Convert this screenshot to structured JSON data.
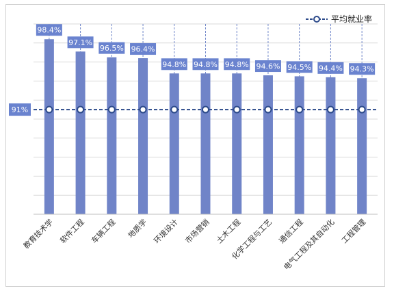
{
  "chart_data": {
    "type": "bar",
    "categories": [
      "教育技术学",
      "软件工程",
      "车辆工程",
      "地质学",
      "环境设计",
      "市场营销",
      "土木工程",
      "化学工程与工艺",
      "通信工程",
      "电气工程及其自动化",
      "工程管理"
    ],
    "values": [
      98.4,
      97.1,
      96.5,
      96.4,
      94.8,
      94.8,
      94.8,
      94.6,
      94.5,
      94.4,
      94.3
    ],
    "value_labels": [
      "98.4%",
      "97.1%",
      "96.5%",
      "96.4%",
      "94.8%",
      "94.8%",
      "94.8%",
      "94.6%",
      "94.5%",
      "94.4%",
      "94.3%"
    ],
    "average": {
      "name": "平均就业率",
      "value": 91,
      "label": "91%"
    },
    "ylim": [
      80,
      100
    ],
    "grid": true,
    "legend_position": "top-right",
    "colors": {
      "bar": "#7084c8",
      "label_box": "#6a83cf",
      "average_line": "#2c4a8a",
      "marker_fill": "#ffffff",
      "grid": "#d9d9d9"
    }
  }
}
